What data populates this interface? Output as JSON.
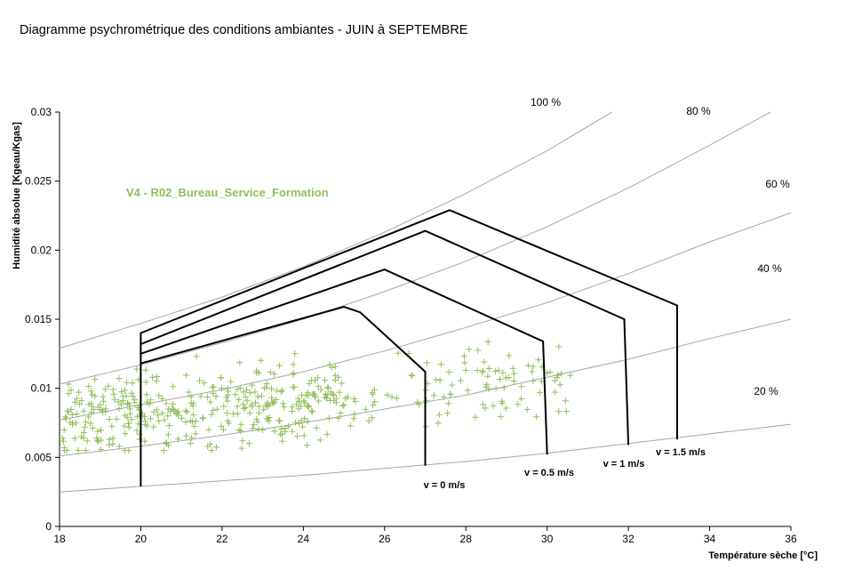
{
  "colors": {
    "curve": "#a6a6a6",
    "zone": "#000000",
    "points": "#8fbf5a",
    "axis": "#000000"
  },
  "chart_data": {
    "type": "scatter",
    "title": "Diagramme psychrométrique des conditions ambiantes - JUIN à SEPTEMBRE",
    "xlabel": "Température sèche [°C]",
    "ylabel": "Humidité absolue [Kgeau/Kgas]",
    "xlim": [
      18,
      36
    ],
    "ylim": [
      0,
      0.03
    ],
    "xticks": [
      "18",
      "20",
      "22",
      "24",
      "26",
      "28",
      "30",
      "32",
      "34",
      "36"
    ],
    "yticks": [
      "0",
      "0.005",
      "0.01",
      "0.015",
      "0.02",
      "0.025",
      "0.03"
    ],
    "grid": false,
    "rh_curves": [
      {
        "label": "100 %",
        "rh": 100,
        "points": [
          [
            18,
            0.0129
          ],
          [
            20,
            0.0147
          ],
          [
            22,
            0.0166
          ],
          [
            24,
            0.0188
          ],
          [
            26,
            0.0213
          ],
          [
            28,
            0.0241
          ],
          [
            30,
            0.0272
          ],
          [
            31.6,
            0.03
          ]
        ]
      },
      {
        "label": "80 %",
        "rh": 80,
        "points": [
          [
            18,
            0.0103
          ],
          [
            20,
            0.0117
          ],
          [
            22,
            0.0133
          ],
          [
            24,
            0.015
          ],
          [
            26,
            0.017
          ],
          [
            28,
            0.0192
          ],
          [
            30,
            0.0217
          ],
          [
            32,
            0.0245
          ],
          [
            34,
            0.0276
          ],
          [
            35.5,
            0.03
          ]
        ]
      },
      {
        "label": "60 %",
        "rh": 60,
        "points": [
          [
            18,
            0.0077
          ],
          [
            20,
            0.0088
          ],
          [
            22,
            0.0099
          ],
          [
            24,
            0.0112
          ],
          [
            26,
            0.0127
          ],
          [
            28,
            0.0144
          ],
          [
            30,
            0.0162
          ],
          [
            32,
            0.0183
          ],
          [
            34,
            0.0206
          ],
          [
            36,
            0.0227
          ]
        ]
      },
      {
        "label": "40 %",
        "rh": 40,
        "points": [
          [
            18,
            0.0051
          ],
          [
            20,
            0.0058
          ],
          [
            22,
            0.0066
          ],
          [
            24,
            0.0075
          ],
          [
            26,
            0.0085
          ],
          [
            28,
            0.0095
          ],
          [
            30,
            0.0108
          ],
          [
            32,
            0.0121
          ],
          [
            34,
            0.0136
          ],
          [
            36,
            0.015
          ]
        ]
      },
      {
        "label": "20 %",
        "rh": 20,
        "points": [
          [
            18,
            0.0025
          ],
          [
            20,
            0.0029
          ],
          [
            22,
            0.0033
          ],
          [
            24,
            0.0037
          ],
          [
            26,
            0.0042
          ],
          [
            28,
            0.0047
          ],
          [
            30,
            0.0053
          ],
          [
            32,
            0.006
          ],
          [
            34,
            0.0067
          ],
          [
            36,
            0.0074
          ]
        ]
      }
    ],
    "comfort_zones": [
      {
        "label": "v = 0 m/s",
        "points": [
          [
            20,
            0.0029
          ],
          [
            20,
            0.0118
          ],
          [
            25,
            0.0159
          ],
          [
            25.4,
            0.0155
          ],
          [
            27,
            0.0112
          ],
          [
            27,
            0.0044
          ]
        ]
      },
      {
        "label": "v = 0.5 m/s",
        "points": [
          [
            20,
            0.0118
          ],
          [
            20,
            0.0125
          ],
          [
            26,
            0.0186
          ],
          [
            29.9,
            0.0134
          ],
          [
            30,
            0.0052
          ]
        ]
      },
      {
        "label": "v = 1 m/s",
        "points": [
          [
            20,
            0.0125
          ],
          [
            20,
            0.0132
          ],
          [
            27,
            0.0214
          ],
          [
            31.9,
            0.015
          ],
          [
            32,
            0.0059
          ]
        ]
      },
      {
        "label": "v = 1.5 m/s",
        "points": [
          [
            20,
            0.0132
          ],
          [
            20,
            0.014
          ],
          [
            27.6,
            0.0229
          ],
          [
            33.2,
            0.016
          ],
          [
            33.2,
            0.0063
          ]
        ]
      }
    ],
    "series": [
      {
        "name": "V4 - R02_Bureau_Service_Formation",
        "marker": "+",
        "n_points": 480,
        "x_range": [
          18,
          30.7
        ],
        "y_range": [
          0.0055,
          0.0162
        ]
      }
    ]
  }
}
